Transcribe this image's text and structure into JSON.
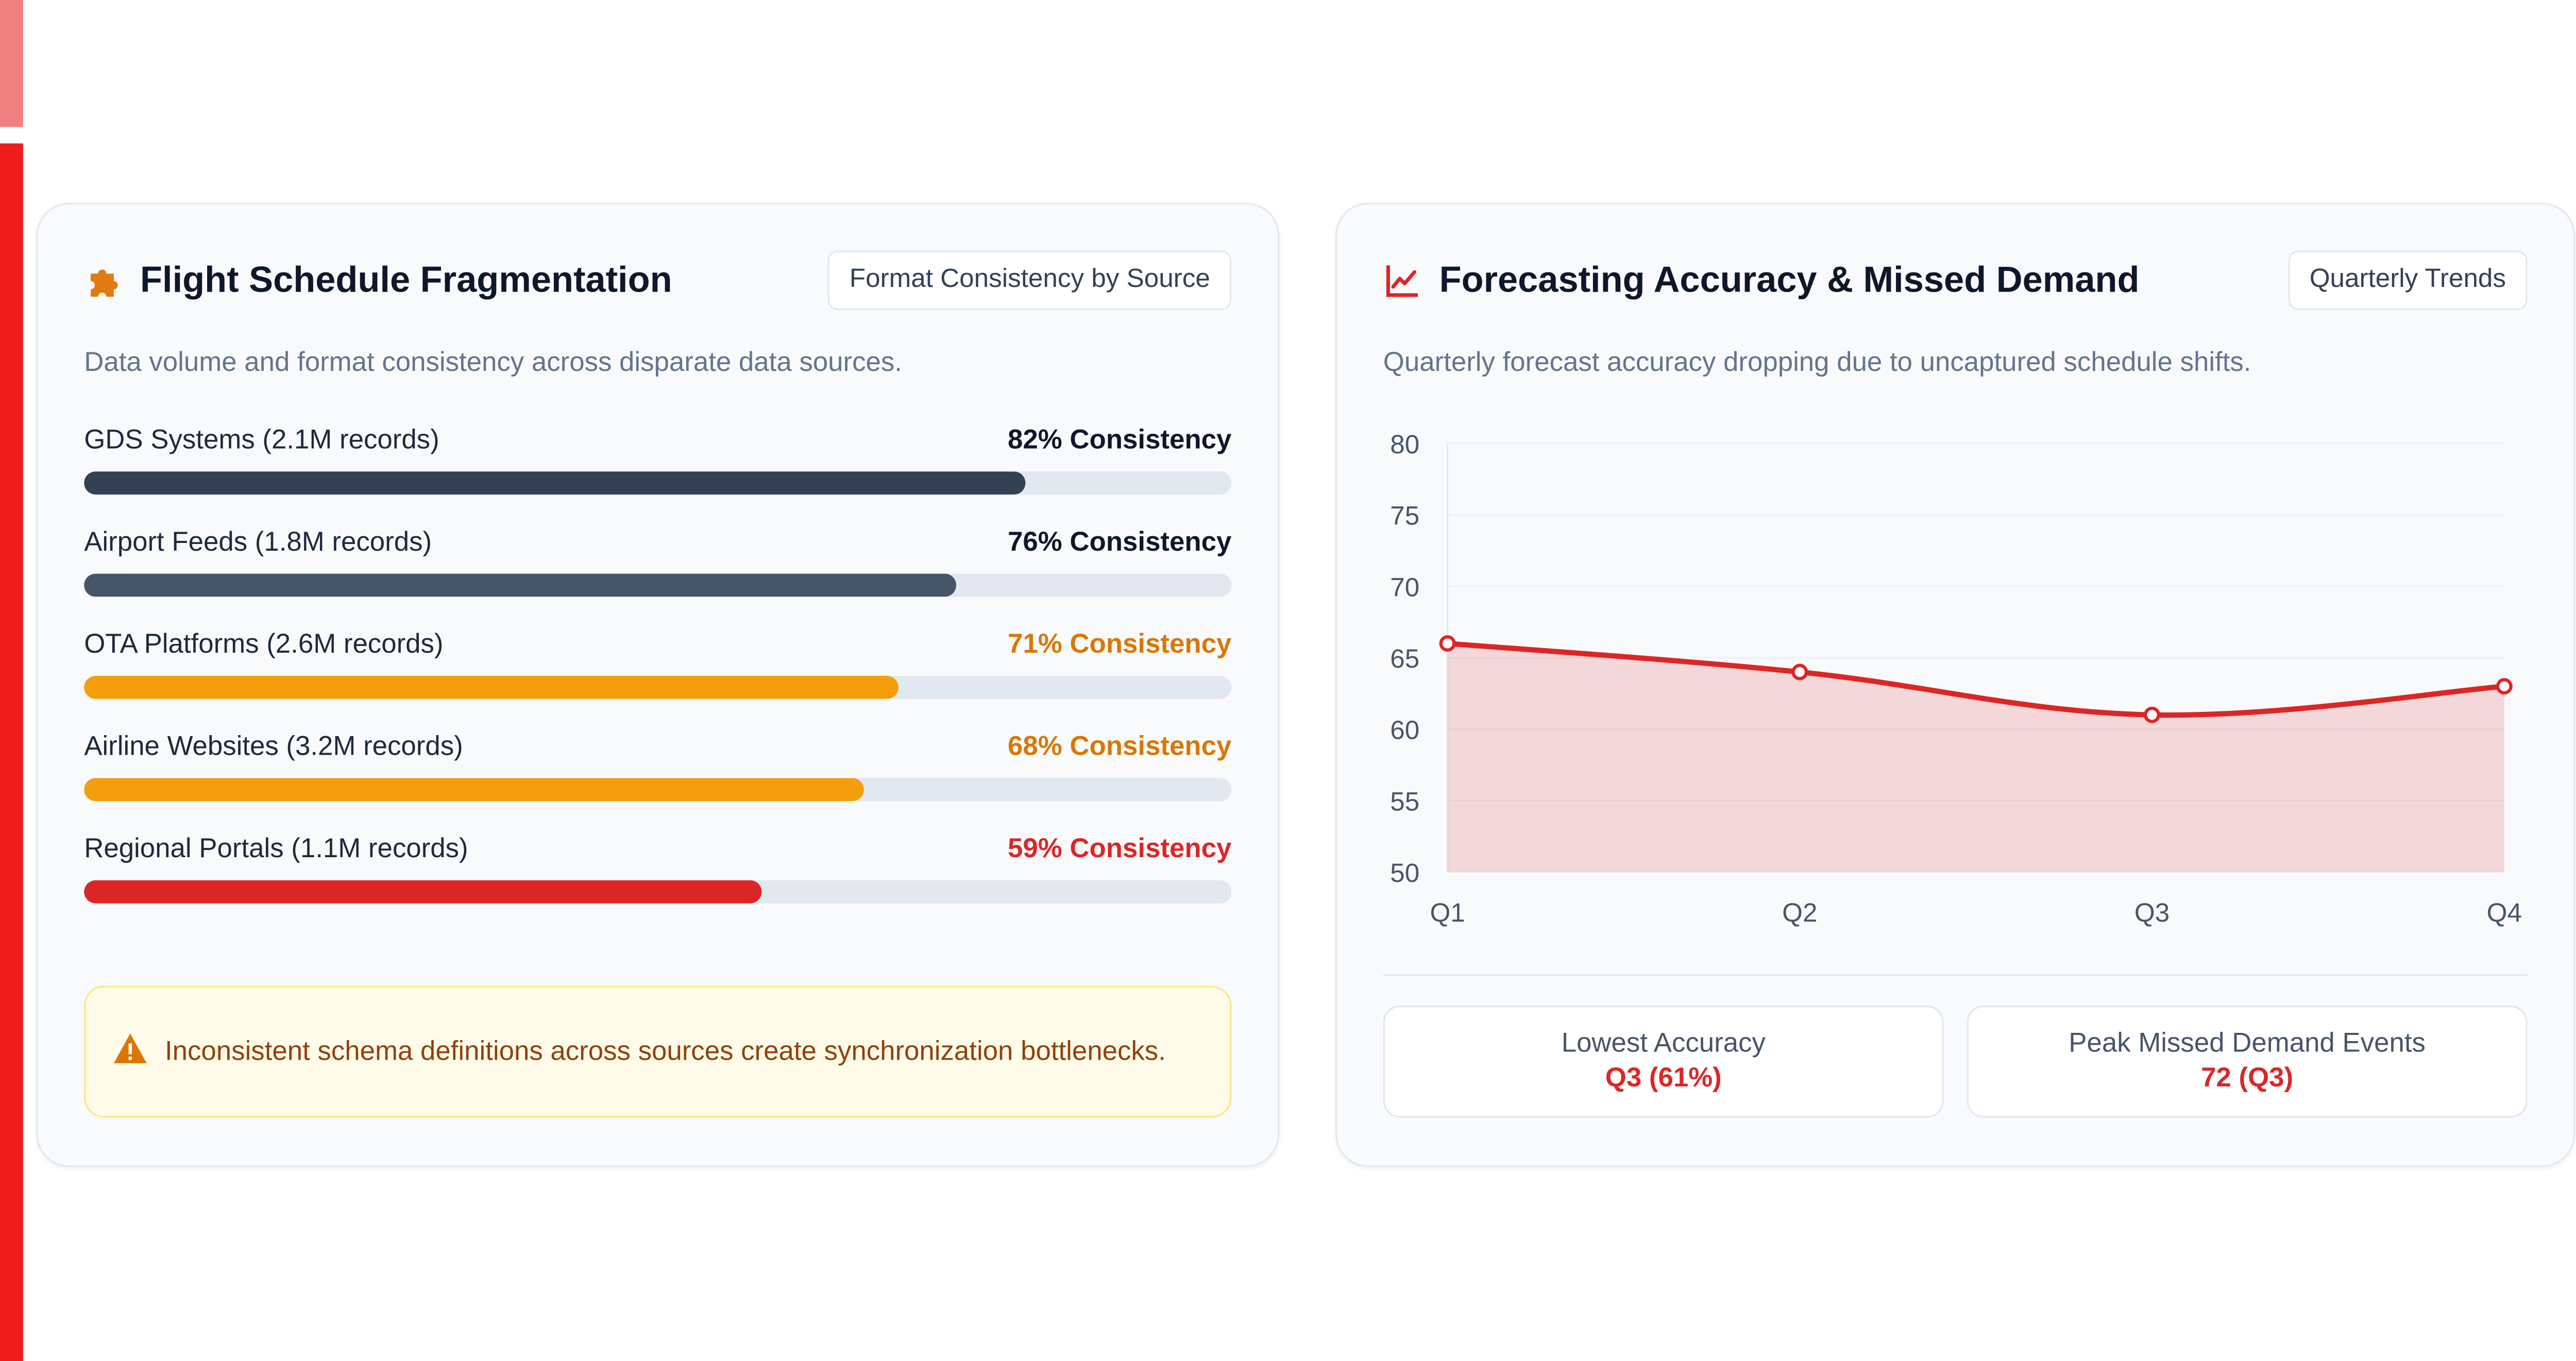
{
  "fragmentation": {
    "title": "Flight Schedule Fragmentation",
    "pill": "Format Consistency by Source",
    "subtitle": "Data volume and format consistency across disparate data sources.",
    "icon": "puzzle-icon",
    "sources": [
      {
        "name": "GDS Systems (2.1M records)",
        "label": "82% Consistency",
        "value": 82,
        "color": "#334155",
        "text_color": "#0f172a"
      },
      {
        "name": "Airport Feeds (1.8M records)",
        "label": "76% Consistency",
        "value": 76,
        "color": "#475569",
        "text_color": "#0f172a"
      },
      {
        "name": "OTA Platforms (2.6M records)",
        "label": "71% Consistency",
        "value": 71,
        "color": "#f59e0b",
        "text_color": "#d97706"
      },
      {
        "name": "Airline Websites (3.2M records)",
        "label": "68% Consistency",
        "value": 68,
        "color": "#f59e0b",
        "text_color": "#d97706"
      },
      {
        "name": "Regional Portals (1.1M records)",
        "label": "59% Consistency",
        "value": 59,
        "color": "#dc2626",
        "text_color": "#dc2626"
      }
    ],
    "warning": "Inconsistent schema definitions across sources create synchronization bottlenecks.",
    "warning_icon": "warning-triangle-icon"
  },
  "forecast": {
    "title": "Forecasting Accuracy & Missed Demand",
    "pill": "Quarterly Trends",
    "subtitle": "Quarterly forecast accuracy dropping due to uncaptured schedule shifts.",
    "icon": "line-chart-icon",
    "stats": [
      {
        "label": "Lowest Accuracy",
        "value": "Q3 (61%)"
      },
      {
        "label": "Peak Missed Demand Events",
        "value": "72 (Q3)"
      }
    ]
  },
  "chart_data": {
    "type": "area",
    "categories": [
      "Q1",
      "Q2",
      "Q3",
      "Q4"
    ],
    "series": [
      {
        "values": [
          66,
          64,
          61,
          63
        ],
        "color": "#dc2626"
      }
    ],
    "ylim": [
      50,
      80
    ],
    "yticks": [
      80,
      75,
      70,
      65,
      60,
      55,
      50
    ],
    "grid": true,
    "legend": "none",
    "title": "",
    "xlabel": "",
    "ylabel": ""
  },
  "colors": {
    "accent_red": "#ee1c1c",
    "accent_pink": "#f08080",
    "card_bg": "#f8fafc"
  }
}
